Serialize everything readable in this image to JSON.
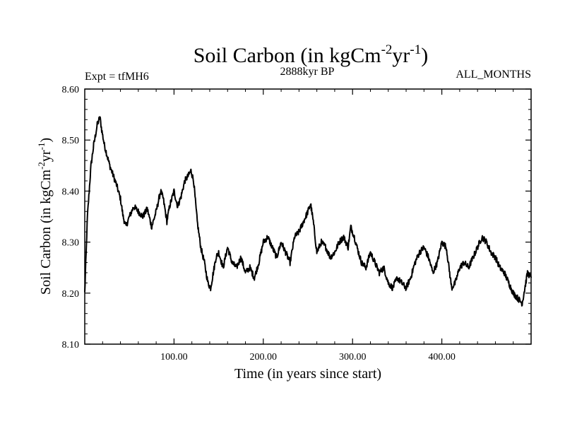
{
  "chart_data": {
    "type": "line",
    "title": {
      "main": "Soil Carbon (in kgCm",
      "sup1": "-2",
      "mid": "yr",
      "sup2": "-1",
      "end": ")"
    },
    "header_left": "Expt = tfMH6",
    "header_center": "2888kyr BP",
    "header_right": "ALL_MONTHS",
    "xlabel": "Time (in years since start)",
    "ylabel": {
      "main": "Soil Carbon (in kgCm",
      "sup1": "-2",
      "mid": "yr",
      "sup2": "-1",
      "end": ")"
    },
    "xlim": [
      0,
      500
    ],
    "ylim": [
      8.1,
      8.6
    ],
    "xticks": [
      100,
      200,
      300,
      400
    ],
    "xtick_labels": [
      "100.00",
      "200.00",
      "300.00",
      "400.00"
    ],
    "yticks": [
      8.1,
      8.2,
      8.3,
      8.4,
      8.5,
      8.6
    ],
    "ytick_labels": [
      "8.10",
      "8.20",
      "8.30",
      "8.40",
      "8.50",
      "8.60"
    ],
    "grid": false,
    "series": [
      {
        "name": "Soil Carbon",
        "color": "#000000",
        "x": [
          0,
          3,
          7,
          10,
          14,
          17,
          19,
          22,
          25,
          28,
          32,
          36,
          40,
          43,
          46,
          50,
          55,
          60,
          65,
          70,
          75,
          80,
          85,
          88,
          92,
          95,
          100,
          104,
          108,
          112,
          116,
          119,
          122,
          126,
          130,
          134,
          138,
          141,
          144,
          147,
          150,
          155,
          160,
          165,
          170,
          175,
          180,
          185,
          190,
          195,
          200,
          205,
          210,
          215,
          220,
          225,
          230,
          235,
          240,
          245,
          250,
          253,
          256,
          260,
          265,
          270,
          275,
          280,
          285,
          290,
          295,
          298,
          302,
          305,
          310,
          315,
          320,
          325,
          330,
          335,
          340,
          345,
          350,
          355,
          360,
          365,
          370,
          375,
          380,
          385,
          390,
          395,
          400,
          405,
          408,
          411,
          415,
          420,
          425,
          430,
          435,
          440,
          445,
          450,
          455,
          460,
          465,
          470,
          475,
          480,
          485,
          490,
          493,
          496,
          500
        ],
        "y": [
          8.2,
          8.35,
          8.45,
          8.49,
          8.53,
          8.545,
          8.52,
          8.49,
          8.47,
          8.45,
          8.43,
          8.41,
          8.385,
          8.35,
          8.33,
          8.35,
          8.37,
          8.36,
          8.35,
          8.365,
          8.33,
          8.36,
          8.4,
          8.385,
          8.34,
          8.37,
          8.4,
          8.37,
          8.39,
          8.42,
          8.43,
          8.44,
          8.42,
          8.34,
          8.29,
          8.26,
          8.22,
          8.21,
          8.24,
          8.27,
          8.28,
          8.25,
          8.29,
          8.26,
          8.25,
          8.27,
          8.24,
          8.25,
          8.23,
          8.26,
          8.3,
          8.31,
          8.29,
          8.27,
          8.3,
          8.28,
          8.26,
          8.31,
          8.32,
          8.34,
          8.36,
          8.375,
          8.34,
          8.28,
          8.3,
          8.29,
          8.27,
          8.28,
          8.3,
          8.31,
          8.29,
          8.33,
          8.31,
          8.29,
          8.26,
          8.25,
          8.28,
          8.26,
          8.24,
          8.25,
          8.22,
          8.21,
          8.23,
          8.22,
          8.21,
          8.23,
          8.26,
          8.28,
          8.29,
          8.27,
          8.24,
          8.26,
          8.3,
          8.29,
          8.25,
          8.21,
          8.22,
          8.25,
          8.26,
          8.25,
          8.27,
          8.29,
          8.31,
          8.3,
          8.28,
          8.27,
          8.25,
          8.24,
          8.22,
          8.2,
          8.19,
          8.18,
          8.21,
          8.24,
          8.23
        ]
      }
    ]
  }
}
